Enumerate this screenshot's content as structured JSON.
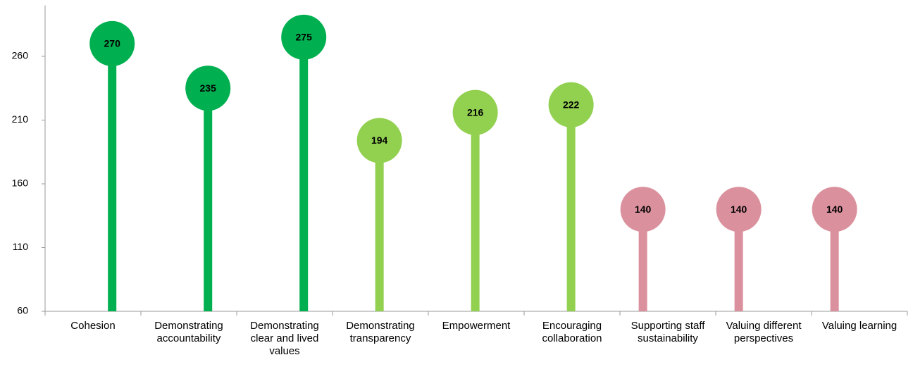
{
  "chart_data": {
    "type": "lollipop",
    "categories": [
      "Cohesion",
      "Demonstrating accountability",
      "Demonstrating clear and lived values",
      "Demonstrating transparency",
      "Empowerment",
      "Encouraging collaboration",
      "Supporting staff sustainability",
      "Valuing different perspectives",
      "Valuing learning"
    ],
    "series": [
      {
        "color": "#00b050",
        "values": [
          270,
          235,
          275,
          null,
          null,
          null,
          null,
          null,
          null
        ]
      },
      {
        "color": "#92d050",
        "values": [
          null,
          null,
          null,
          194,
          216,
          222,
          null,
          null,
          null
        ]
      },
      {
        "color": "#da919d",
        "values": [
          null,
          null,
          null,
          null,
          null,
          null,
          140,
          140,
          140
        ]
      }
    ],
    "ylim": [
      60,
      300
    ],
    "yticks": [
      60,
      110,
      160,
      210,
      260
    ]
  }
}
